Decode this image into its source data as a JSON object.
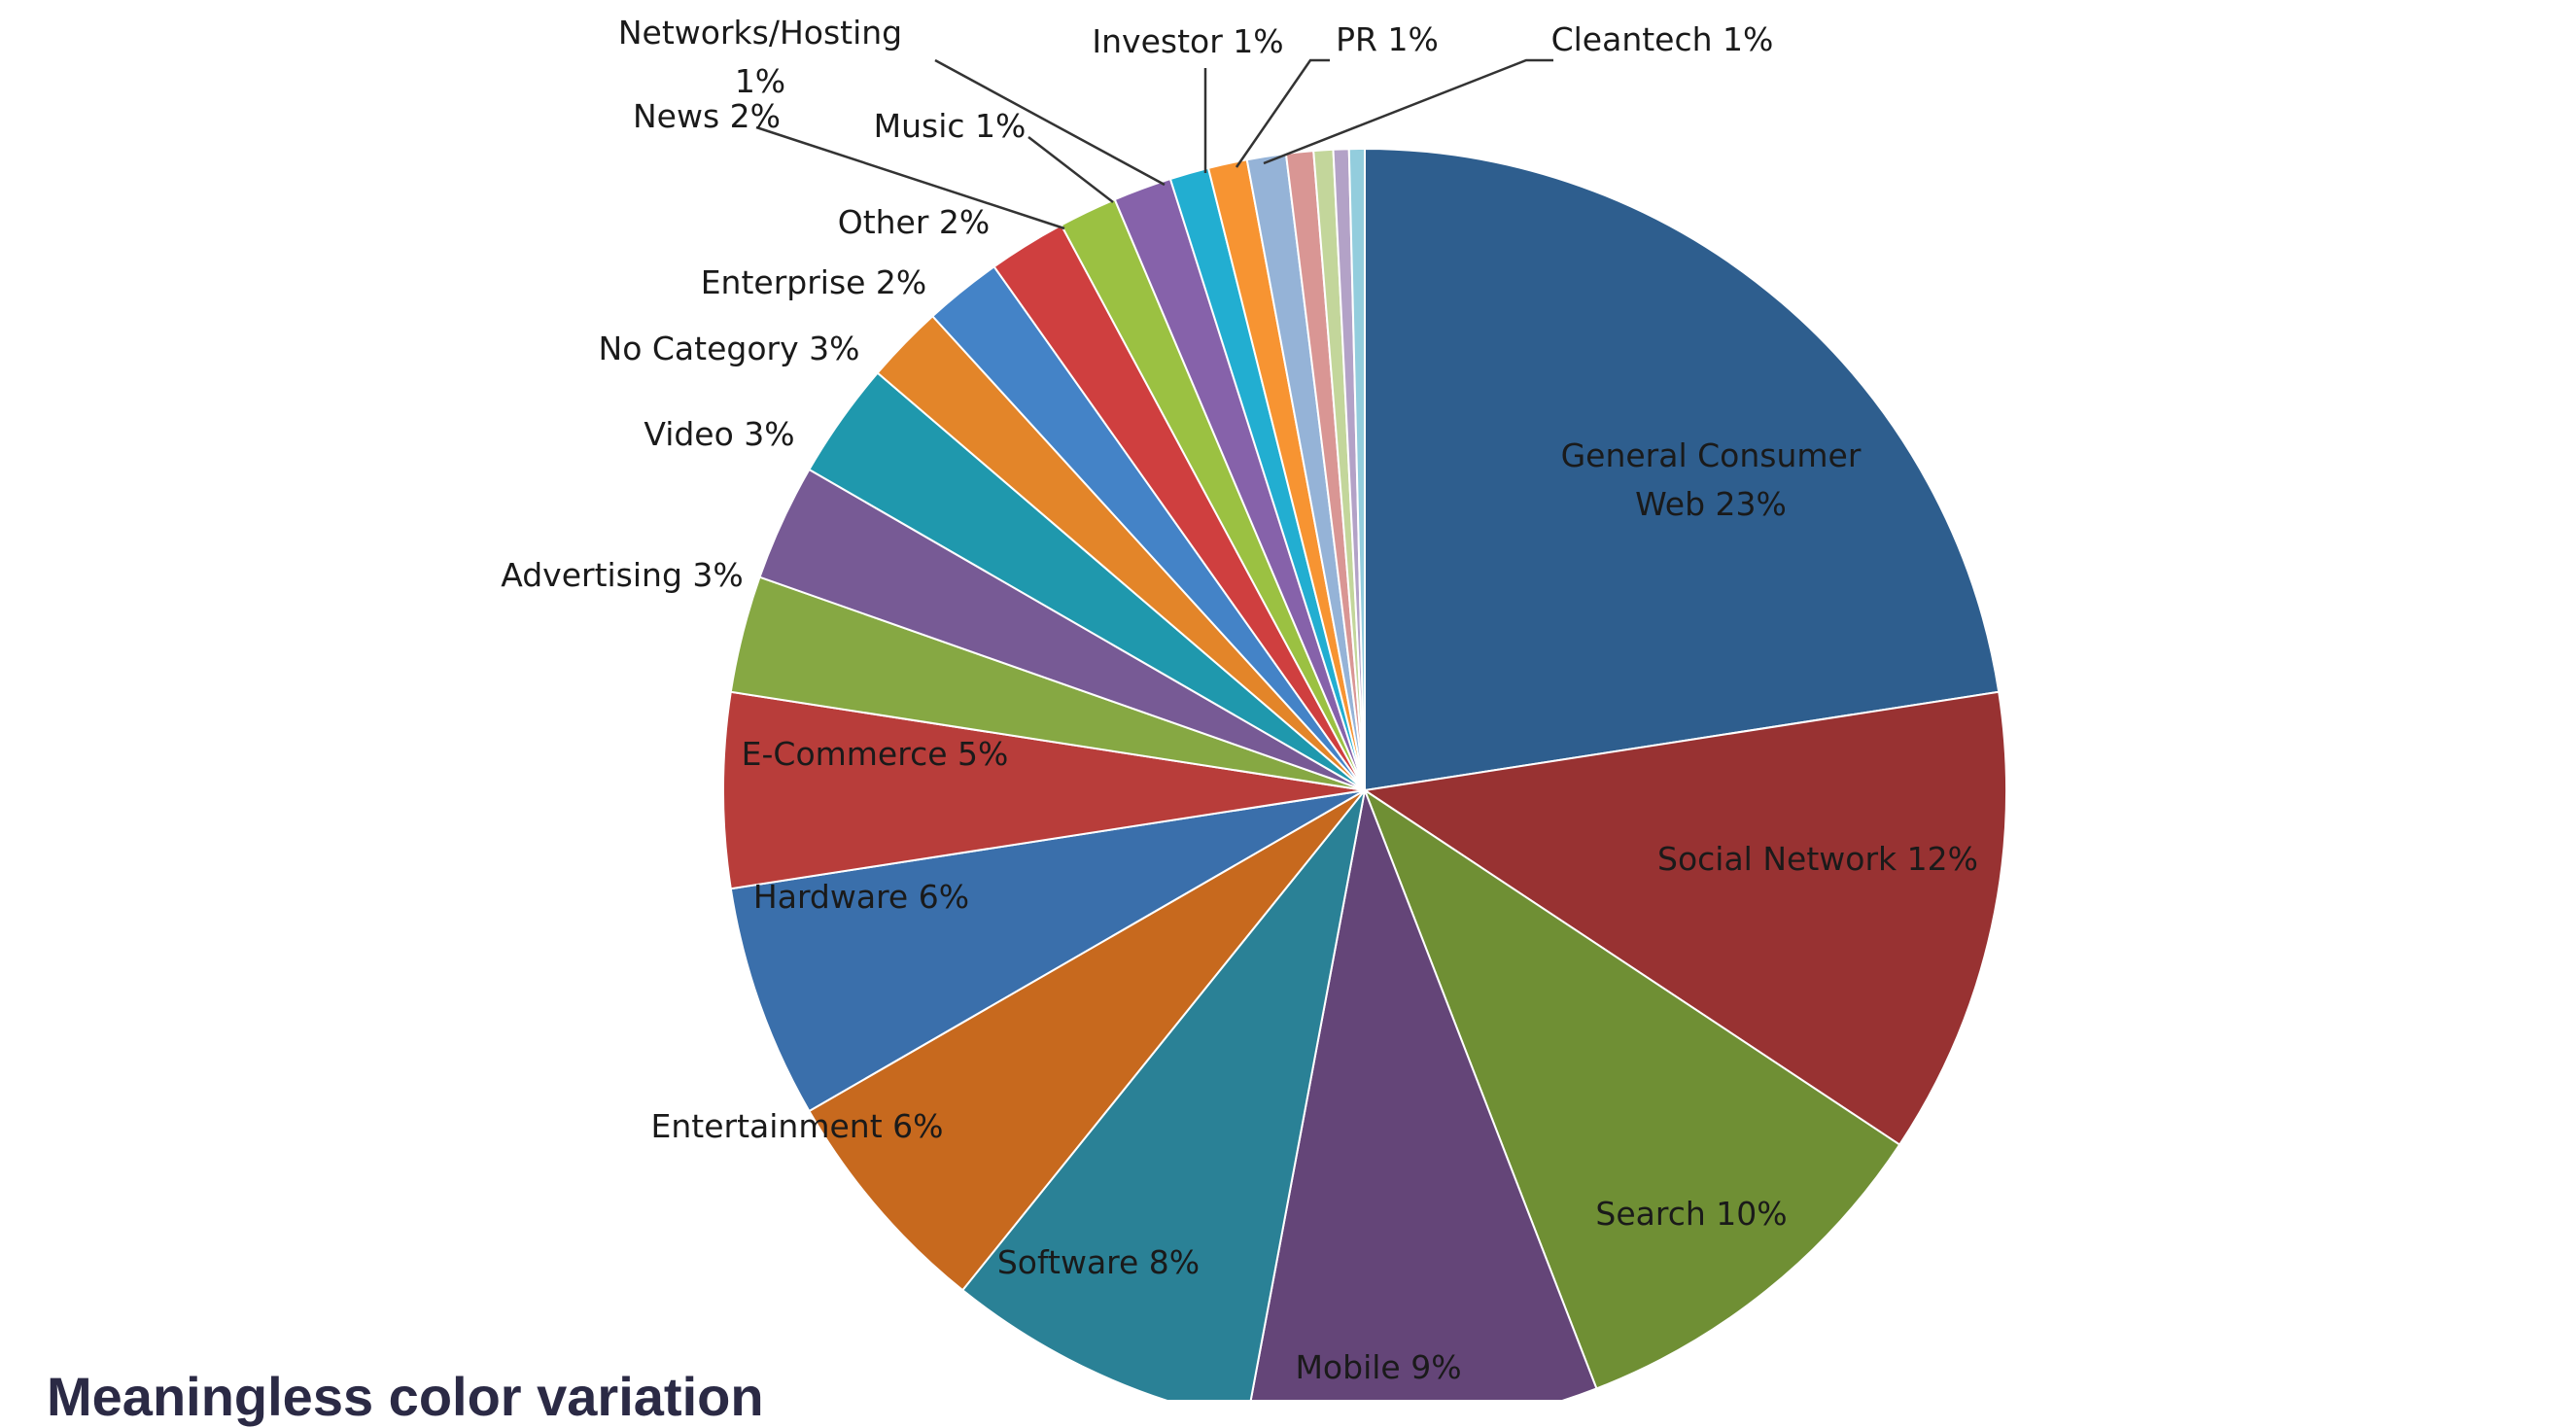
{
  "caption": "Meaningless color variation",
  "chart_data": {
    "type": "pie",
    "start": "12 o'clock, clockwise",
    "slices": [
      {
        "label": "General Consumer Web",
        "display": [
          "General Consumer",
          "Web 23%"
        ],
        "value": 23,
        "color": "#2e5e8e"
      },
      {
        "label": "Social Network",
        "display": [
          "Social Network 12%"
        ],
        "value": 12,
        "color": "#983232"
      },
      {
        "label": "Search",
        "display": [
          "Search 10%"
        ],
        "value": 10,
        "color": "#6f8f34"
      },
      {
        "label": "Mobile",
        "display": [
          "Mobile 9%"
        ],
        "value": 9,
        "color": "#644578"
      },
      {
        "label": "Software",
        "display": [
          "Software 8%"
        ],
        "value": 8,
        "color": "#2a8196"
      },
      {
        "label": "Entertainment",
        "display": [
          "Entertainment  6%"
        ],
        "value": 6,
        "color": "#c7691e"
      },
      {
        "label": "Hardware",
        "display": [
          "Hardware 6%"
        ],
        "value": 6,
        "color": "#3a6fab"
      },
      {
        "label": "E-Commerce",
        "display": [
          "E-Commerce  5%"
        ],
        "value": 5,
        "color": "#b83d3a"
      },
      {
        "label": "Advertising",
        "display": [
          "Advertising 3%"
        ],
        "value": 3,
        "color": "#86a843"
      },
      {
        "label": "Video",
        "display": [
          "Video 3%"
        ],
        "value": 3,
        "color": "#775a95"
      },
      {
        "label": "No Category",
        "display": [
          "No Category 3%"
        ],
        "value": 3,
        "color": "#1f98ad"
      },
      {
        "label": "Enterprise",
        "display": [
          "Enterprise 2%"
        ],
        "value": 2,
        "color": "#e38529"
      },
      {
        "label": "Other",
        "display": [
          "Other  2%"
        ],
        "value": 2,
        "color": "#4483c7"
      },
      {
        "label": "News",
        "display": [
          "News 2%"
        ],
        "value": 2,
        "color": "#cf3f3f"
      },
      {
        "label": "Music",
        "display": [
          "Music 1%"
        ],
        "value": 1.5,
        "color": "#9bc142"
      },
      {
        "label": "Networks/Hosting",
        "display": [
          "Networks/Hosting",
          "1%"
        ],
        "value": 1.5,
        "color": "#8662aa"
      },
      {
        "label": "Investor",
        "display": [
          "Investor 1%"
        ],
        "value": 1,
        "color": "#22aed1"
      },
      {
        "label": "PR",
        "display": [
          "PR 1%"
        ],
        "value": 1,
        "color": "#f79432"
      },
      {
        "label": "Cleantech",
        "display": [
          "Cleantech 1%"
        ],
        "value": 1,
        "color": "#95b3d7"
      },
      {
        "label": "",
        "value": 0.7,
        "color": "#d99694"
      },
      {
        "label": "",
        "value": 0.5,
        "color": "#c3d69b"
      },
      {
        "label": "",
        "value": 0.4,
        "color": "#b3a2c7"
      },
      {
        "label": "",
        "value": 0.4,
        "color": "#93cddd"
      }
    ]
  }
}
